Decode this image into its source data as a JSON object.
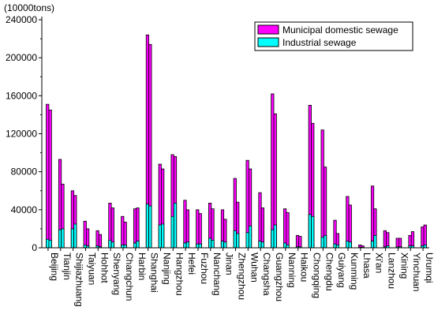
{
  "chart_data": {
    "type": "bar",
    "title": "",
    "unit_label": "(10000tons)",
    "xlabel": "",
    "ylabel": "",
    "ylim": [
      0,
      240000
    ],
    "yticks": [
      0,
      40000,
      80000,
      120000,
      160000,
      200000,
      240000
    ],
    "legend_position": "top-right",
    "colors": {
      "municipal": "#ff00ff",
      "industrial": "#00ffff",
      "edge": "#000000"
    },
    "categories": [
      "Beijing",
      "Tianjin",
      "Shijiazhuang",
      "Taiyuan",
      "Hohhot",
      "Shenyang",
      "Changchun",
      "Harbin",
      "Shanghai",
      "Nanjing",
      "Hangzhou",
      "Hefei",
      "Fuzhou",
      "Nanchang",
      "Jinan",
      "Zhengzhou",
      "Wuhan",
      "Changsha",
      "Guangzhou",
      "Nanning",
      "Haikou",
      "Chongqing",
      "Chengdu",
      "Guiyang",
      "Kunming",
      "Lhasa",
      "Xi'an",
      "Lanzhou",
      "Xining",
      "Yinchuan",
      "Urumqi"
    ],
    "series": [
      {
        "name": "Municipal domestic sewage",
        "values": [
          [
            151000,
            145000
          ],
          [
            93000,
            67000
          ],
          [
            60000,
            55000
          ],
          [
            28000,
            20000
          ],
          [
            18000,
            14000
          ],
          [
            47000,
            42000
          ],
          [
            33000,
            27000
          ],
          [
            41000,
            42000
          ],
          [
            224000,
            214000
          ],
          [
            88000,
            83000
          ],
          [
            98000,
            96000
          ],
          [
            50000,
            40000
          ],
          [
            40000,
            36000
          ],
          [
            47000,
            41000
          ],
          [
            40000,
            30000
          ],
          [
            73000,
            48000
          ],
          [
            92000,
            83000
          ],
          [
            58000,
            42000
          ],
          [
            162000,
            141000
          ],
          [
            41000,
            37000
          ],
          [
            13000,
            12000
          ],
          [
            150000,
            131000
          ],
          [
            124000,
            85000
          ],
          [
            29000,
            15000
          ],
          [
            54000,
            45000
          ],
          [
            3000,
            2000
          ],
          [
            65000,
            41000
          ],
          [
            18000,
            16000
          ],
          [
            10000,
            10000
          ],
          [
            13000,
            17000
          ],
          [
            22000,
            24000
          ]
        ]
      },
      {
        "name": "Industrial sewage",
        "values": [
          [
            9000,
            8000
          ],
          [
            19000,
            20000
          ],
          [
            20000,
            25000
          ],
          [
            3000,
            2000
          ],
          [
            2000,
            1000
          ],
          [
            8000,
            6000
          ],
          [
            3000,
            3000
          ],
          [
            5000,
            7000
          ],
          [
            46000,
            44000
          ],
          [
            24000,
            25000
          ],
          [
            33000,
            47000
          ],
          [
            5000,
            6000
          ],
          [
            4000,
            4000
          ],
          [
            10000,
            8000
          ],
          [
            7000,
            6000
          ],
          [
            18000,
            15000
          ],
          [
            16000,
            23000
          ],
          [
            7000,
            6000
          ],
          [
            19000,
            24000
          ],
          [
            5000,
            3000
          ],
          [
            1000,
            1000
          ],
          [
            35000,
            33000
          ],
          [
            11000,
            13000
          ],
          [
            4000,
            3000
          ],
          [
            7000,
            6000
          ],
          [
            500,
            500
          ],
          [
            7000,
            13000
          ],
          [
            1000,
            2000
          ],
          [
            1000,
            1000
          ],
          [
            2000,
            2000
          ],
          [
            2000,
            3000
          ]
        ]
      }
    ]
  }
}
